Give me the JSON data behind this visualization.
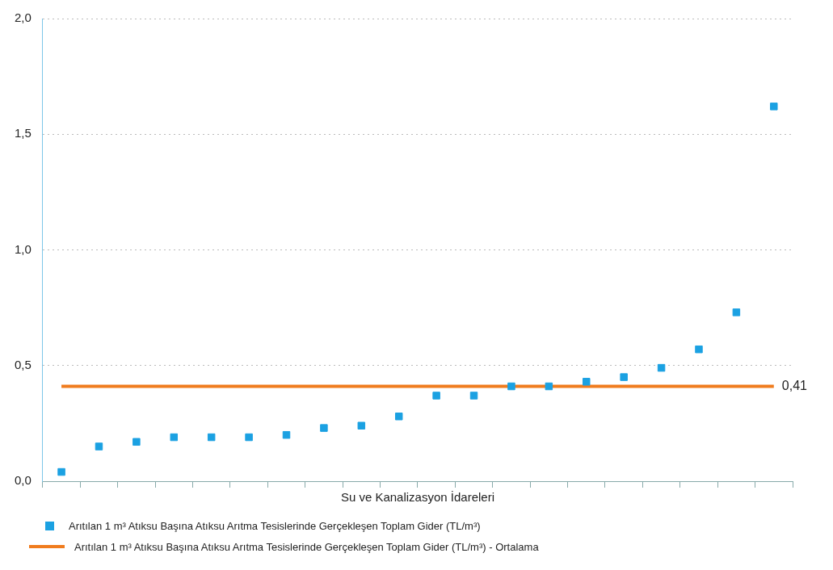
{
  "chart_data": {
    "type": "scatter",
    "xlabel": "Su ve Kanalizasyon İdareleri",
    "categories": [
      null,
      null,
      null,
      null,
      null,
      null,
      null,
      null,
      null,
      null,
      null,
      null,
      null,
      null,
      null,
      null,
      null,
      null,
      null,
      null
    ],
    "series": [
      {
        "name": "Arıtılan 1 m³ Atıksu Başına Atıksu Arıtma Tesislerinde Gerçekleşen Toplam Gider (TL/m³)",
        "color": "#1ba1e2",
        "marker": "square",
        "values": [
          0.04,
          0.15,
          0.17,
          0.19,
          0.19,
          0.19,
          0.2,
          0.23,
          0.24,
          0.28,
          0.37,
          0.37,
          0.41,
          0.41,
          0.43,
          0.45,
          0.49,
          0.57,
          0.73,
          1.62
        ]
      },
      {
        "name": "Arıtılan 1 m³ Atıksu Başına Atıksu Arıtma Tesislerinde Gerçekleşen Toplam Gider (TL/m³) - Ortalama",
        "color": "#f07c1e",
        "type": "line",
        "marker": "none",
        "values": [
          0.41,
          0.41,
          0.41,
          0.41,
          0.41,
          0.41,
          0.41,
          0.41,
          0.41,
          0.41,
          0.41,
          0.41,
          0.41,
          0.41,
          0.41,
          0.41,
          0.41,
          0.41,
          0.41,
          0.41
        ],
        "value_labels": [
          null,
          null,
          null,
          null,
          null,
          null,
          null,
          null,
          null,
          null,
          null,
          null,
          null,
          null,
          null,
          null,
          null,
          null,
          null,
          "0,41"
        ]
      }
    ],
    "ylim": [
      0,
      2
    ],
    "yticks": [
      {
        "value": 0,
        "label": "0,0"
      },
      {
        "value": 0.5,
        "label": "0,5"
      },
      {
        "value": 1,
        "label": "1,0"
      },
      {
        "value": 1.5,
        "label": "1,5"
      },
      {
        "value": 2,
        "label": "2,0"
      }
    ],
    "grid": "y",
    "legend": "bottom left",
    "tick_labels": "y"
  }
}
